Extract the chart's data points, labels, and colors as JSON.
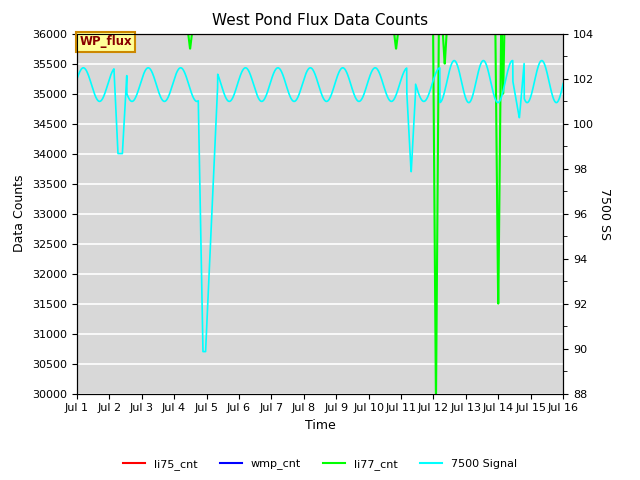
{
  "title": "West Pond Flux Data Counts",
  "xlabel": "Time",
  "ylabel_left": "Data Counts",
  "ylabel_right": "7500 SS",
  "ylim_left": [
    30000,
    36000
  ],
  "ylim_right": [
    88,
    104
  ],
  "bg_color": "#d8d8d8",
  "xtick_labels": [
    "Jul 1",
    "Jul 2",
    "Jul 3",
    "Jul 4",
    "Jul 5",
    "Jul 6",
    "Jul 7",
    "Jul 8",
    "Jul 9",
    "Jul 10",
    "Jul 11",
    "Jul 12",
    "Jul 13",
    "Jul 14",
    "Jul 15",
    "Jul 16"
  ],
  "wp_flux_label": "WP_flux",
  "wp_flux_box_facecolor": "#ffff99",
  "wp_flux_box_edgecolor": "#cc8800",
  "wp_flux_text_color": "#880000",
  "li77_color": "#00ff00",
  "cyan_color": "#00ffff",
  "red_color": "#ff0000",
  "blue_color": "#0000bb"
}
